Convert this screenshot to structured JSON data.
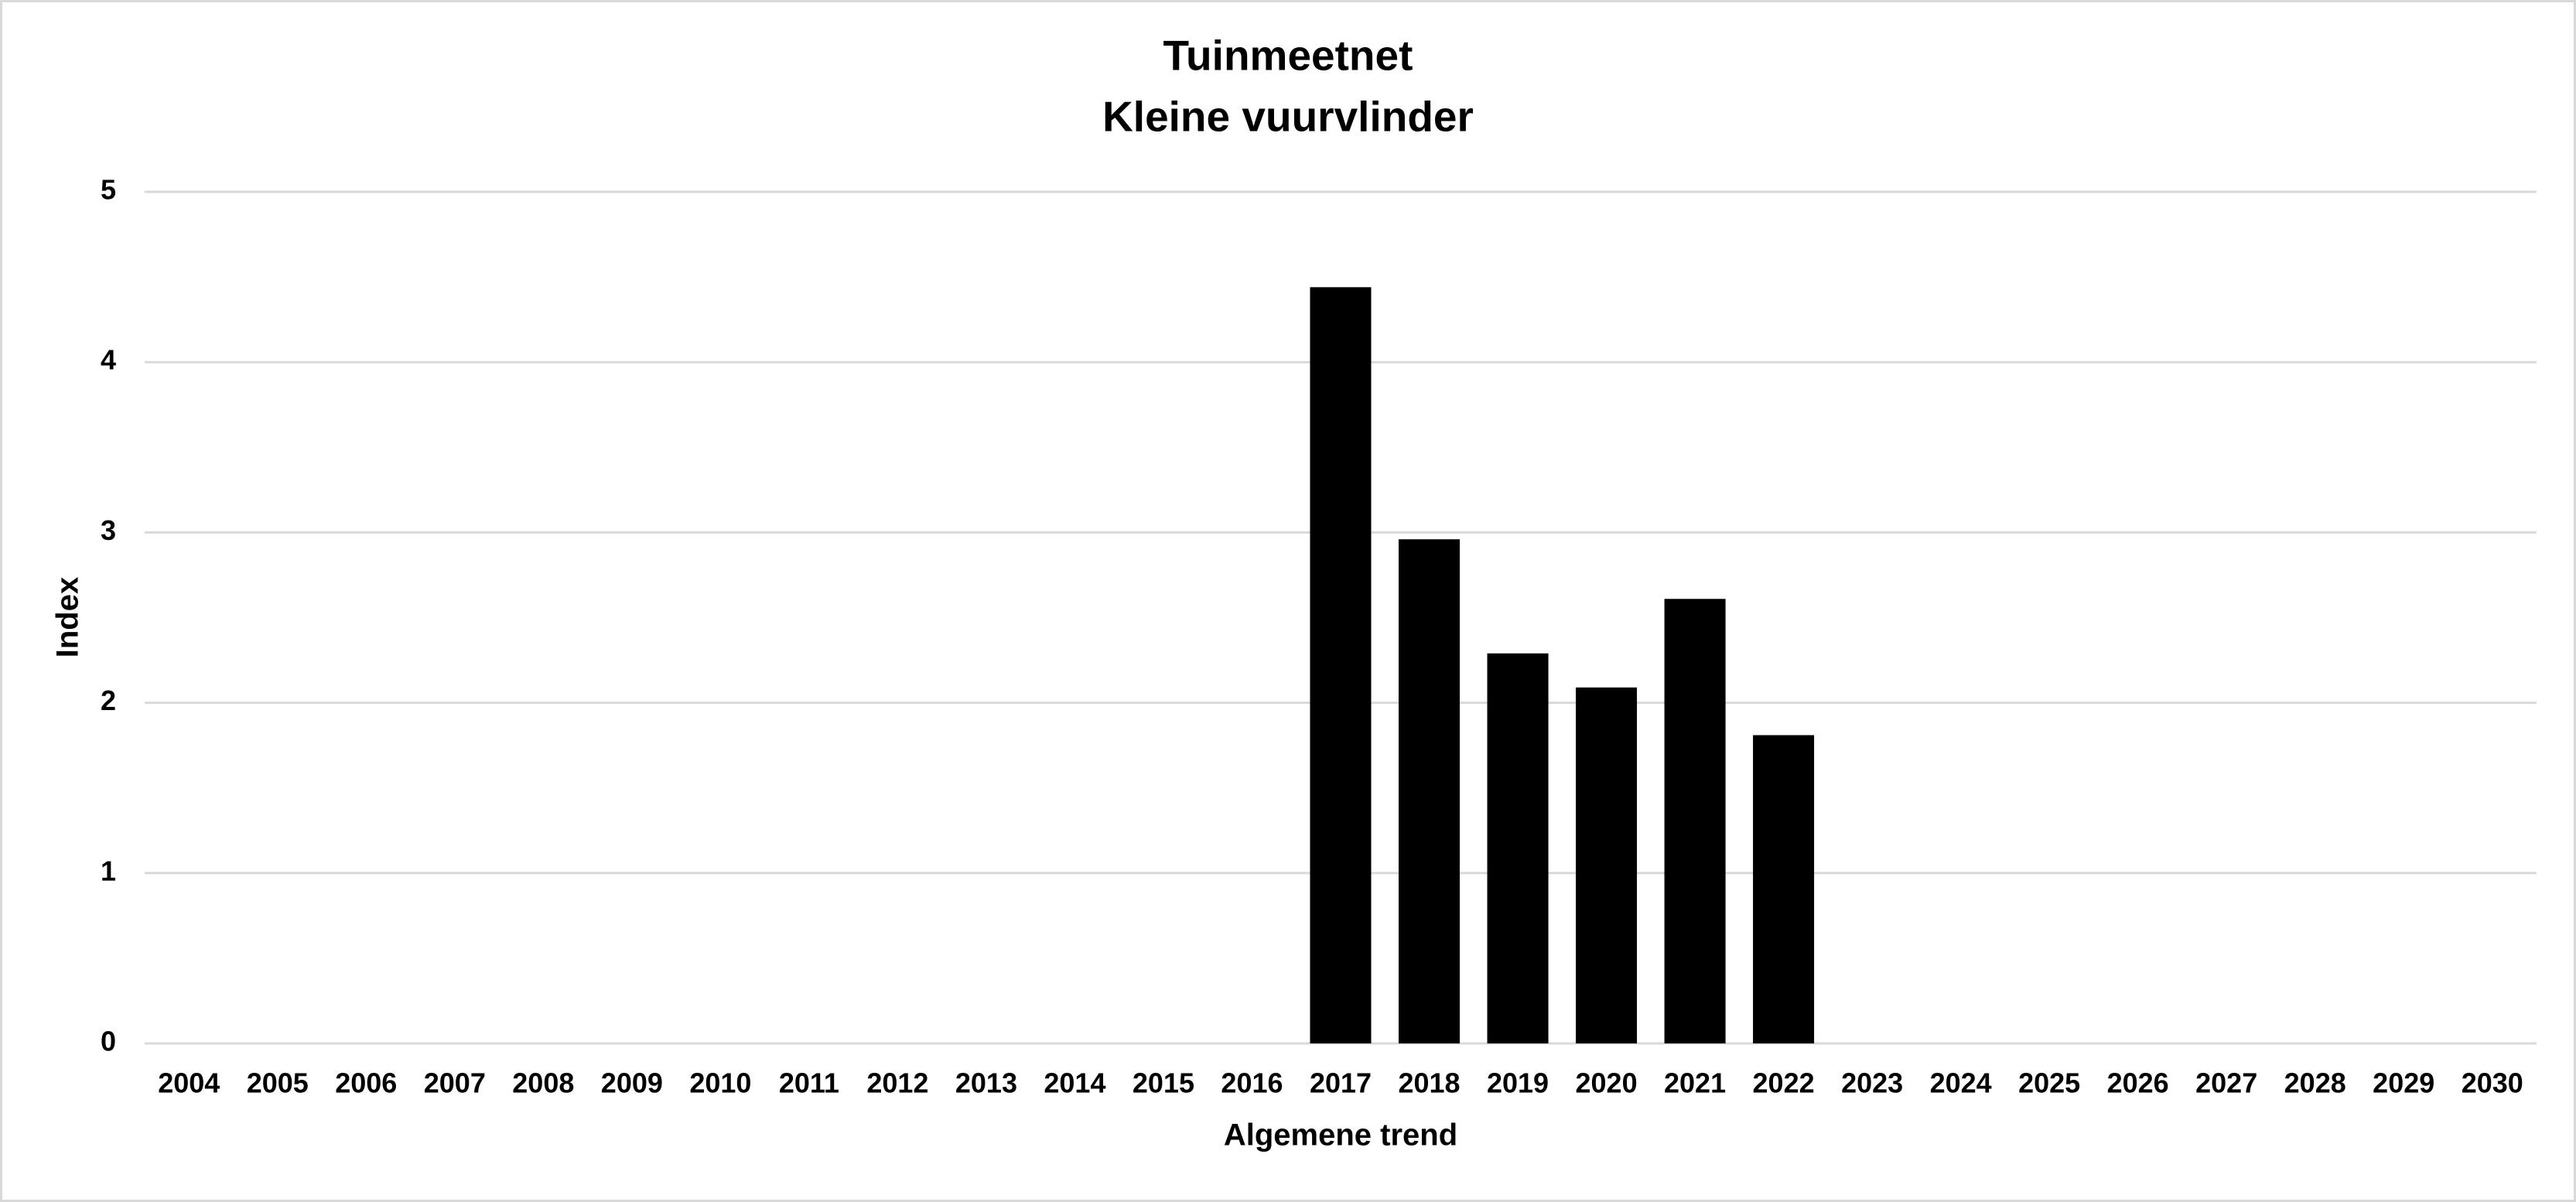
{
  "chart_data": {
    "type": "bar",
    "title": "Tuinmeetnet",
    "subtitle": "Kleine vuurvlinder",
    "x_label": "Algemene trend",
    "y_label": "Index",
    "categories": [
      "2004",
      "2005",
      "2006",
      "2007",
      "2008",
      "2009",
      "2010",
      "2011",
      "2012",
      "2013",
      "2014",
      "2015",
      "2016",
      "2017",
      "2018",
      "2019",
      "2020",
      "2021",
      "2022",
      "2023",
      "2024",
      "2025",
      "2026",
      "2027",
      "2028",
      "2029",
      "2030"
    ],
    "values": [
      null,
      null,
      null,
      null,
      null,
      null,
      null,
      null,
      null,
      null,
      null,
      null,
      null,
      4.44,
      2.96,
      2.29,
      2.09,
      2.61,
      1.81,
      null,
      null,
      null,
      null,
      null,
      null,
      null,
      null
    ],
    "color": "#000000",
    "ylim": [
      0,
      5
    ],
    "yticks": [
      0,
      1,
      2,
      3,
      4,
      5
    ],
    "grid": true
  }
}
